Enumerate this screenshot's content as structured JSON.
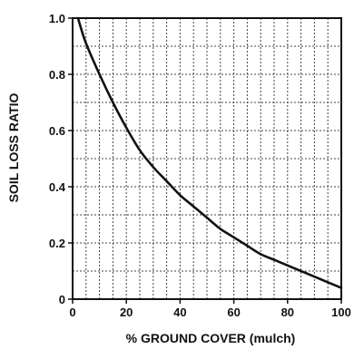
{
  "chart_data": {
    "type": "line",
    "title": "",
    "xlabel": "% GROUND COVER (mulch)",
    "ylabel": "SOIL LOSS RATIO",
    "xlim": [
      0,
      100
    ],
    "ylim": [
      0,
      1.0
    ],
    "x_ticks": [
      0,
      20,
      40,
      60,
      80,
      100
    ],
    "x_tick_labels": [
      "0",
      "20",
      "40",
      "60",
      "80",
      "100"
    ],
    "y_ticks": [
      0,
      0.2,
      0.4,
      0.6,
      0.8,
      1.0
    ],
    "y_tick_labels": [
      "0",
      "0.2",
      "0.4",
      "0.6",
      "0.8",
      "1.0"
    ],
    "grid": true,
    "legend": "none",
    "series": [
      {
        "x": [
          2,
          5,
          10,
          15,
          20,
          25,
          30,
          35,
          40,
          45,
          50,
          55,
          60,
          65,
          70,
          75,
          80,
          85,
          90,
          95,
          100
        ],
        "y": [
          1.0,
          0.91,
          0.8,
          0.7,
          0.61,
          0.53,
          0.47,
          0.42,
          0.37,
          0.33,
          0.29,
          0.25,
          0.22,
          0.19,
          0.16,
          0.14,
          0.12,
          0.1,
          0.08,
          0.06,
          0.04
        ]
      }
    ],
    "colors": {
      "line": "#111111",
      "grid": "#444444",
      "frame": "#111111"
    }
  }
}
